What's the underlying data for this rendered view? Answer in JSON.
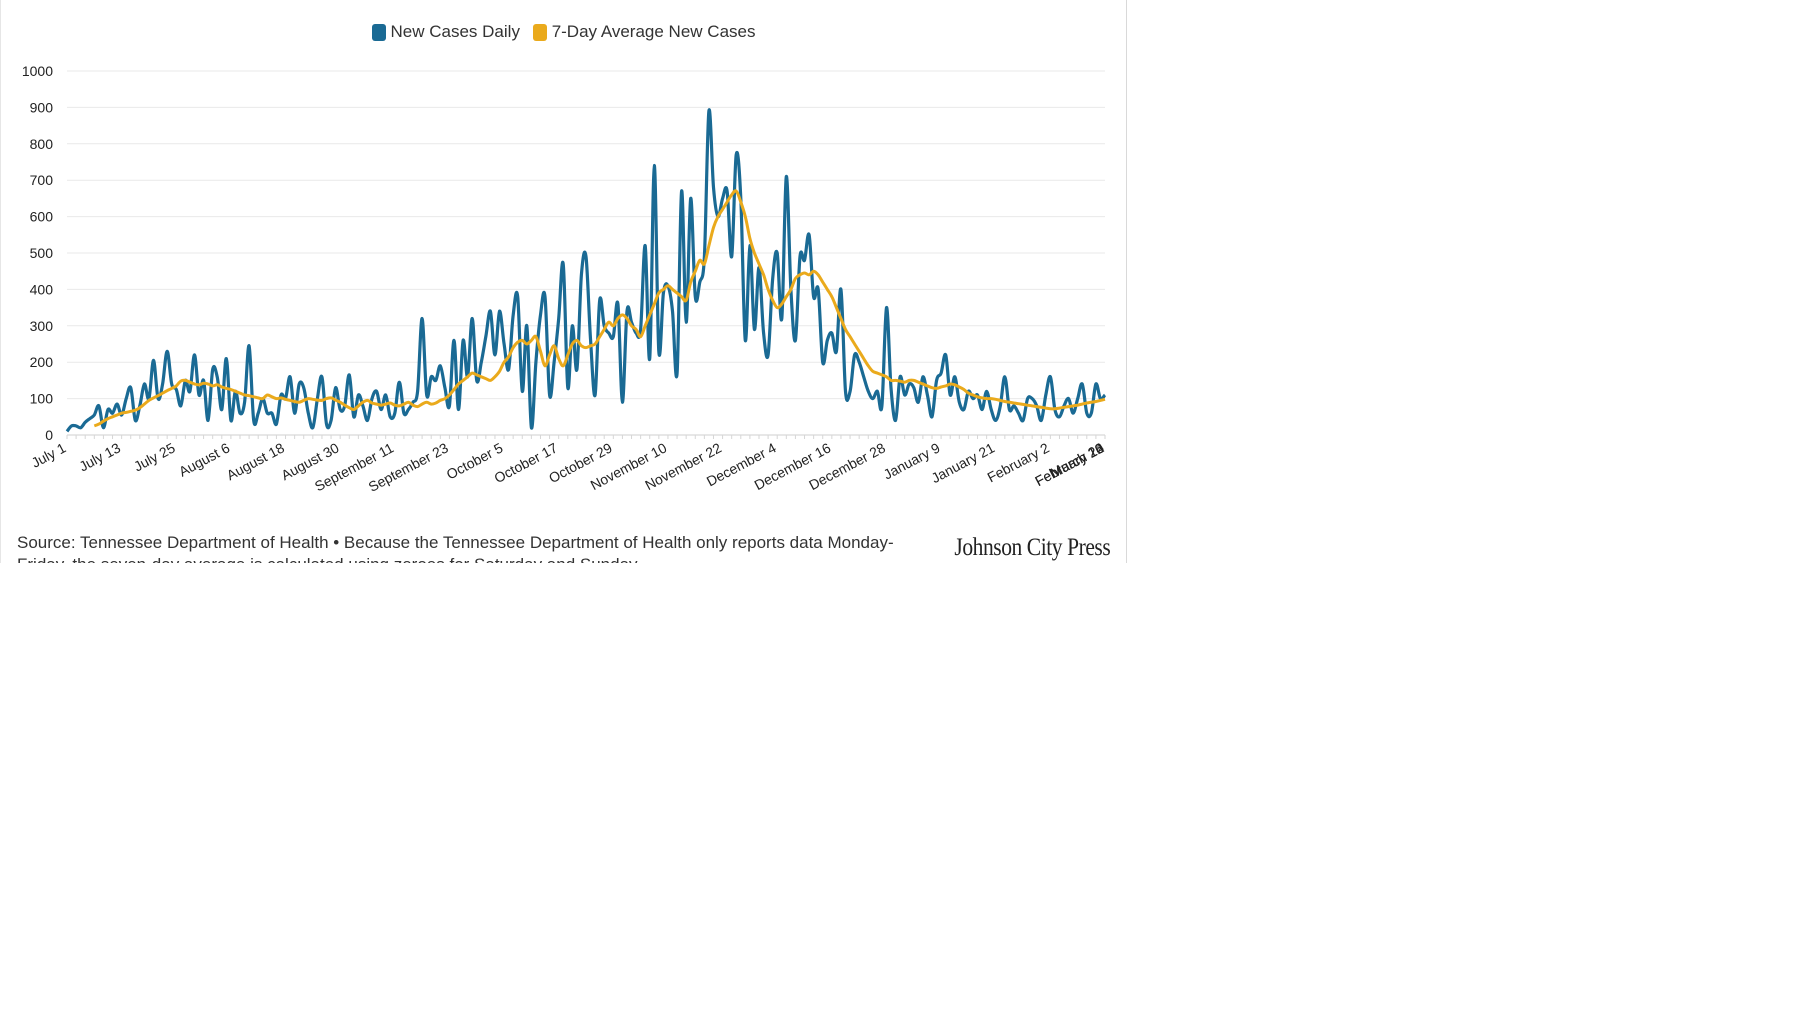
{
  "legend": {
    "daily_label": "New Cases Daily",
    "avg_label": "7-Day Average New Cases"
  },
  "colors": {
    "daily": "#1a6a94",
    "avg": "#eaaa1c",
    "grid": "#e9e9e9"
  },
  "source_text": "Source: Tennessee Department of Health • Because the Tennessee Department of Health only reports data Monday-Friday, the seven-day average is calculated using zeroes for Saturday and Sunday.",
  "logo_text": "Johnson City Press",
  "chart_data": {
    "type": "line",
    "ylim": [
      0,
      1000
    ],
    "yticks": [
      0,
      100,
      200,
      300,
      400,
      500,
      600,
      700,
      800,
      900,
      1000
    ],
    "xtick_labels": [
      "July 1",
      "July 13",
      "July 25",
      "August 6",
      "August 18",
      "August 30",
      "September 11",
      "September 23",
      "October 5",
      "October 17",
      "October 29",
      "November 10",
      "November 22",
      "December 4",
      "December 16",
      "December 28",
      "January 9",
      "January 21",
      "February 2",
      "February 14",
      "February 26",
      "March 10",
      "March 22"
    ],
    "series": [
      {
        "name": "New Cases Daily",
        "values": [
          10,
          25,
          25,
          20,
          35,
          45,
          55,
          80,
          20,
          70,
          60,
          85,
          55,
          100,
          130,
          40,
          80,
          140,
          100,
          205,
          100,
          140,
          230,
          140,
          125,
          80,
          150,
          120,
          220,
          110,
          150,
          40,
          180,
          160,
          70,
          210,
          40,
          120,
          60,
          90,
          245,
          40,
          60,
          100,
          60,
          60,
          30,
          110,
          100,
          160,
          60,
          140,
          130,
          60,
          20,
          100,
          160,
          30,
          40,
          130,
          70,
          80,
          165,
          50,
          110,
          80,
          40,
          100,
          120,
          70,
          110,
          50,
          60,
          145,
          60,
          70,
          90,
          120,
          320,
          110,
          160,
          150,
          190,
          130,
          80,
          260,
          70,
          260,
          160,
          320,
          150,
          200,
          270,
          340,
          220,
          340,
          250,
          180,
          330,
          380,
          120,
          300,
          20,
          200,
          330,
          380,
          110,
          200,
          320,
          470,
          130,
          300,
          180,
          440,
          490,
          260,
          110,
          370,
          300,
          280,
          270,
          360,
          90,
          340,
          310,
          280,
          290,
          520,
          210,
          740,
          230,
          390,
          410,
          340,
          170,
          670,
          310,
          650,
          380,
          420,
          490,
          890,
          680,
          600,
          650,
          670,
          490,
          770,
          650,
          260,
          520,
          290,
          460,
          280,
          220,
          430,
          500,
          320,
          710,
          400,
          260,
          490,
          480,
          550,
          380,
          400,
          200,
          260,
          280,
          230,
          400,
          120,
          120,
          220,
          200,
          160,
          120,
          100,
          120,
          80,
          350,
          130,
          40,
          160,
          110,
          140,
          130,
          90,
          160,
          110,
          50,
          150,
          170,
          220,
          110,
          160,
          90,
          70,
          120,
          100,
          110,
          70,
          120,
          70,
          40,
          80,
          160,
          70,
          80,
          60,
          40,
          100,
          100,
          80,
          40,
          110,
          160,
          70,
          50,
          80,
          100,
          60,
          100,
          140,
          60,
          60,
          140,
          100,
          110
        ]
      },
      {
        "name": "7-Day Average New Cases",
        "start_index": 6,
        "values": [
          25,
          30,
          38,
          45,
          50,
          55,
          60,
          62,
          65,
          68,
          75,
          85,
          95,
          102,
          108,
          115,
          122,
          128,
          135,
          148,
          150,
          145,
          140,
          138,
          142,
          140,
          135,
          138,
          132,
          128,
          125,
          120,
          115,
          110,
          108,
          105,
          102,
          100,
          110,
          105,
          100,
          102,
          98,
          95,
          92,
          90,
          95,
          100,
          98,
          96,
          95,
          100,
          102,
          96,
          90,
          82,
          75,
          70,
          80,
          90,
          95,
          88,
          85,
          82,
          85,
          88,
          82,
          80,
          85,
          90,
          82,
          78,
          85,
          90,
          85,
          88,
          95,
          100,
          110,
          125,
          140,
          150,
          160,
          170,
          165,
          160,
          155,
          150,
          160,
          175,
          200,
          215,
          240,
          255,
          260,
          250,
          260,
          270,
          230,
          190,
          220,
          245,
          210,
          190,
          220,
          250,
          260,
          245,
          240,
          245,
          250,
          270,
          290,
          310,
          300,
          320,
          330,
          320,
          300,
          290,
          270,
          300,
          330,
          360,
          390,
          400,
          410,
          400,
          390,
          380,
          370,
          420,
          450,
          480,
          470,
          520,
          570,
          600,
          620,
          640,
          660,
          670,
          640,
          600,
          540,
          500,
          470,
          440,
          400,
          370,
          350,
          360,
          380,
          400,
          430,
          440,
          445,
          440,
          450,
          440,
          420,
          400,
          380,
          350,
          320,
          290,
          270,
          250,
          230,
          210,
          190,
          175,
          170,
          165,
          160,
          150,
          150,
          148,
          145,
          150,
          150,
          145,
          140,
          135,
          130,
          128,
          132,
          135,
          140,
          138,
          132,
          125,
          115,
          110,
          105,
          102,
          100,
          100,
          98,
          95,
          92,
          90,
          88,
          86,
          84,
          82,
          80,
          78,
          76,
          74,
          72,
          72,
          74,
          76,
          78,
          80,
          82,
          85,
          88,
          90,
          92,
          95,
          98,
          100,
          100,
          102,
          105,
          108
        ]
      }
    ]
  }
}
